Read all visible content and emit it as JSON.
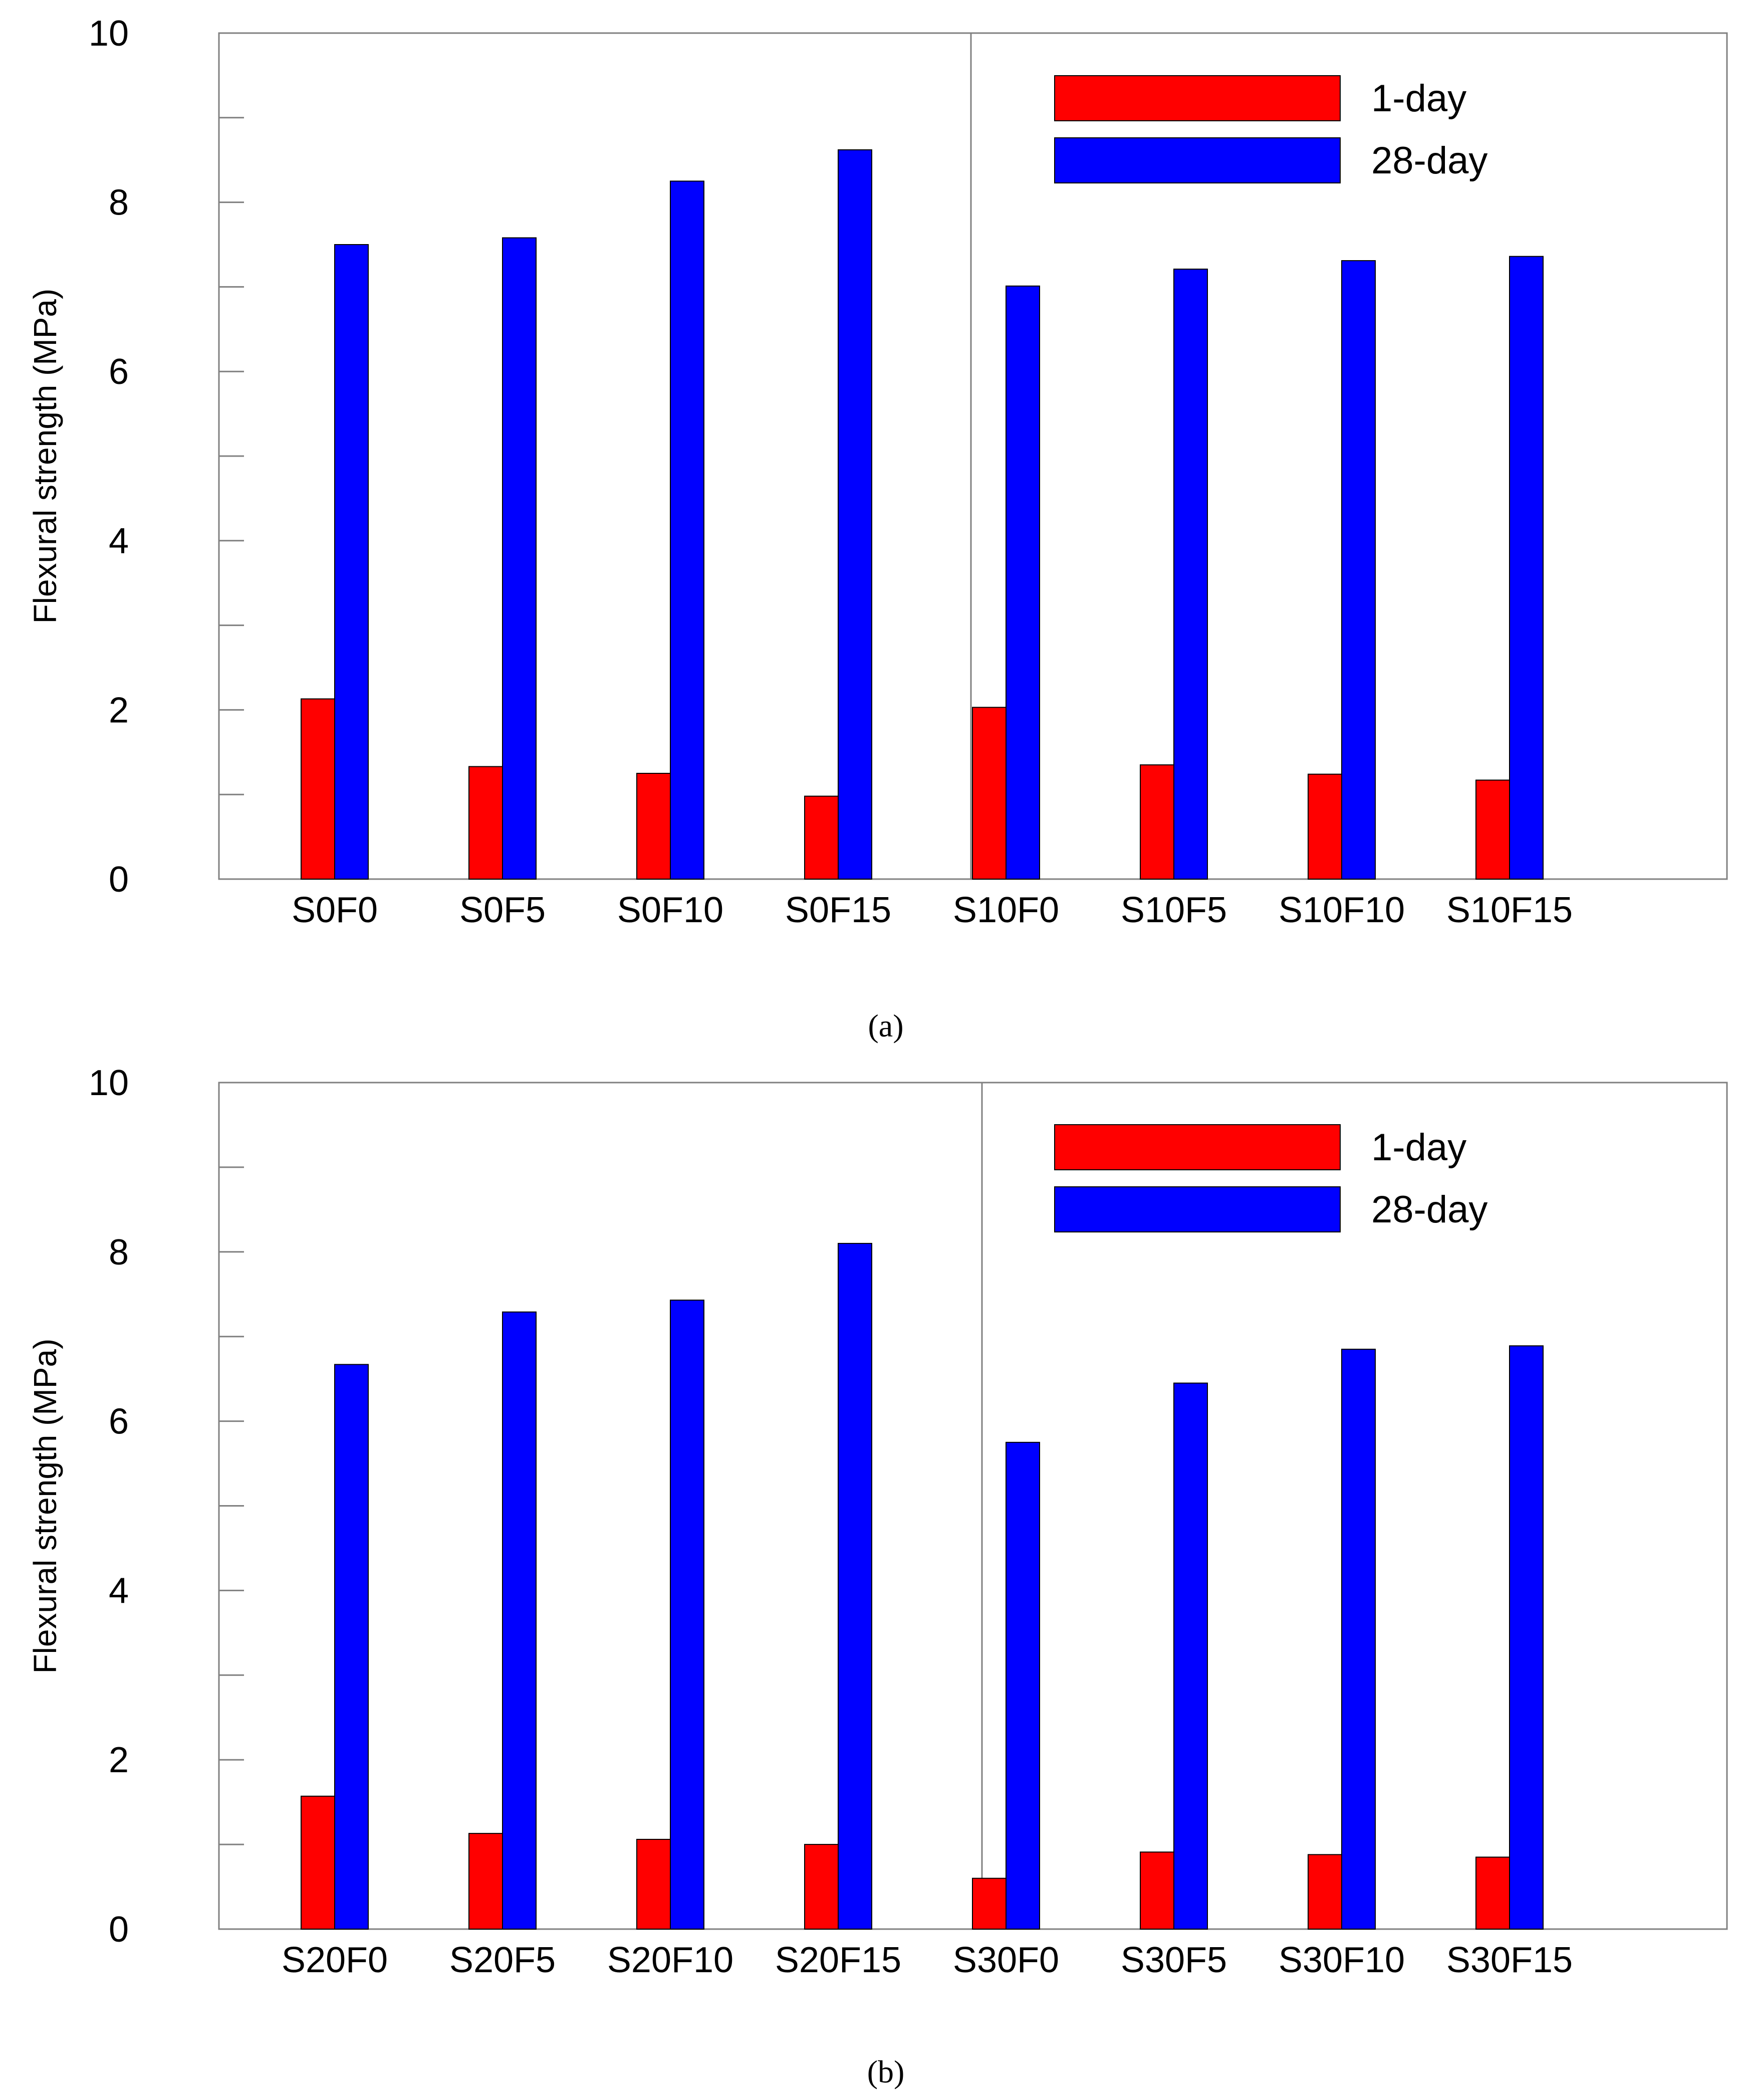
{
  "chart_data": [
    {
      "type": "bar",
      "panel_label": "(a)",
      "ylabel": "Flexural strength (MPa)",
      "xlabel": "",
      "ylim": [
        0,
        10
      ],
      "yticks": [
        "0",
        "2",
        "4",
        "6",
        "8",
        "10"
      ],
      "legend_position": "top-right",
      "categories": [
        "S0F0",
        "S0F5",
        "S0F10",
        "S0F15",
        "S10F0",
        "S10F5",
        "S10F10",
        "S10F15"
      ],
      "series": [
        {
          "name": "1-day",
          "color": "#ff0000",
          "values": [
            2.13,
            1.33,
            1.25,
            0.98,
            2.03,
            1.35,
            1.24,
            1.17
          ]
        },
        {
          "name": "28-day",
          "color": "#0000ff",
          "values": [
            7.5,
            7.58,
            8.25,
            8.62,
            7.01,
            7.21,
            7.31,
            7.36
          ]
        }
      ]
    },
    {
      "type": "bar",
      "panel_label": "(b)",
      "ylabel": "Flexural strength (MPa)",
      "xlabel": "",
      "ylim": [
        0,
        10
      ],
      "yticks": [
        "0",
        "2",
        "4",
        "6",
        "8",
        "10"
      ],
      "legend_position": "top-right",
      "categories": [
        "S20F0",
        "S20F5",
        "S20F10",
        "S20F15",
        "S30F0",
        "S30F5",
        "S30F10",
        "S30F15"
      ],
      "series": [
        {
          "name": "1-day",
          "color": "#ff0000",
          "values": [
            1.57,
            1.13,
            1.06,
            1.0,
            0.6,
            0.91,
            0.88,
            0.85
          ]
        },
        {
          "name": "28-day",
          "color": "#0000ff",
          "values": [
            6.67,
            7.29,
            7.43,
            8.1,
            5.75,
            6.45,
            6.85,
            6.89
          ]
        }
      ]
    }
  ]
}
